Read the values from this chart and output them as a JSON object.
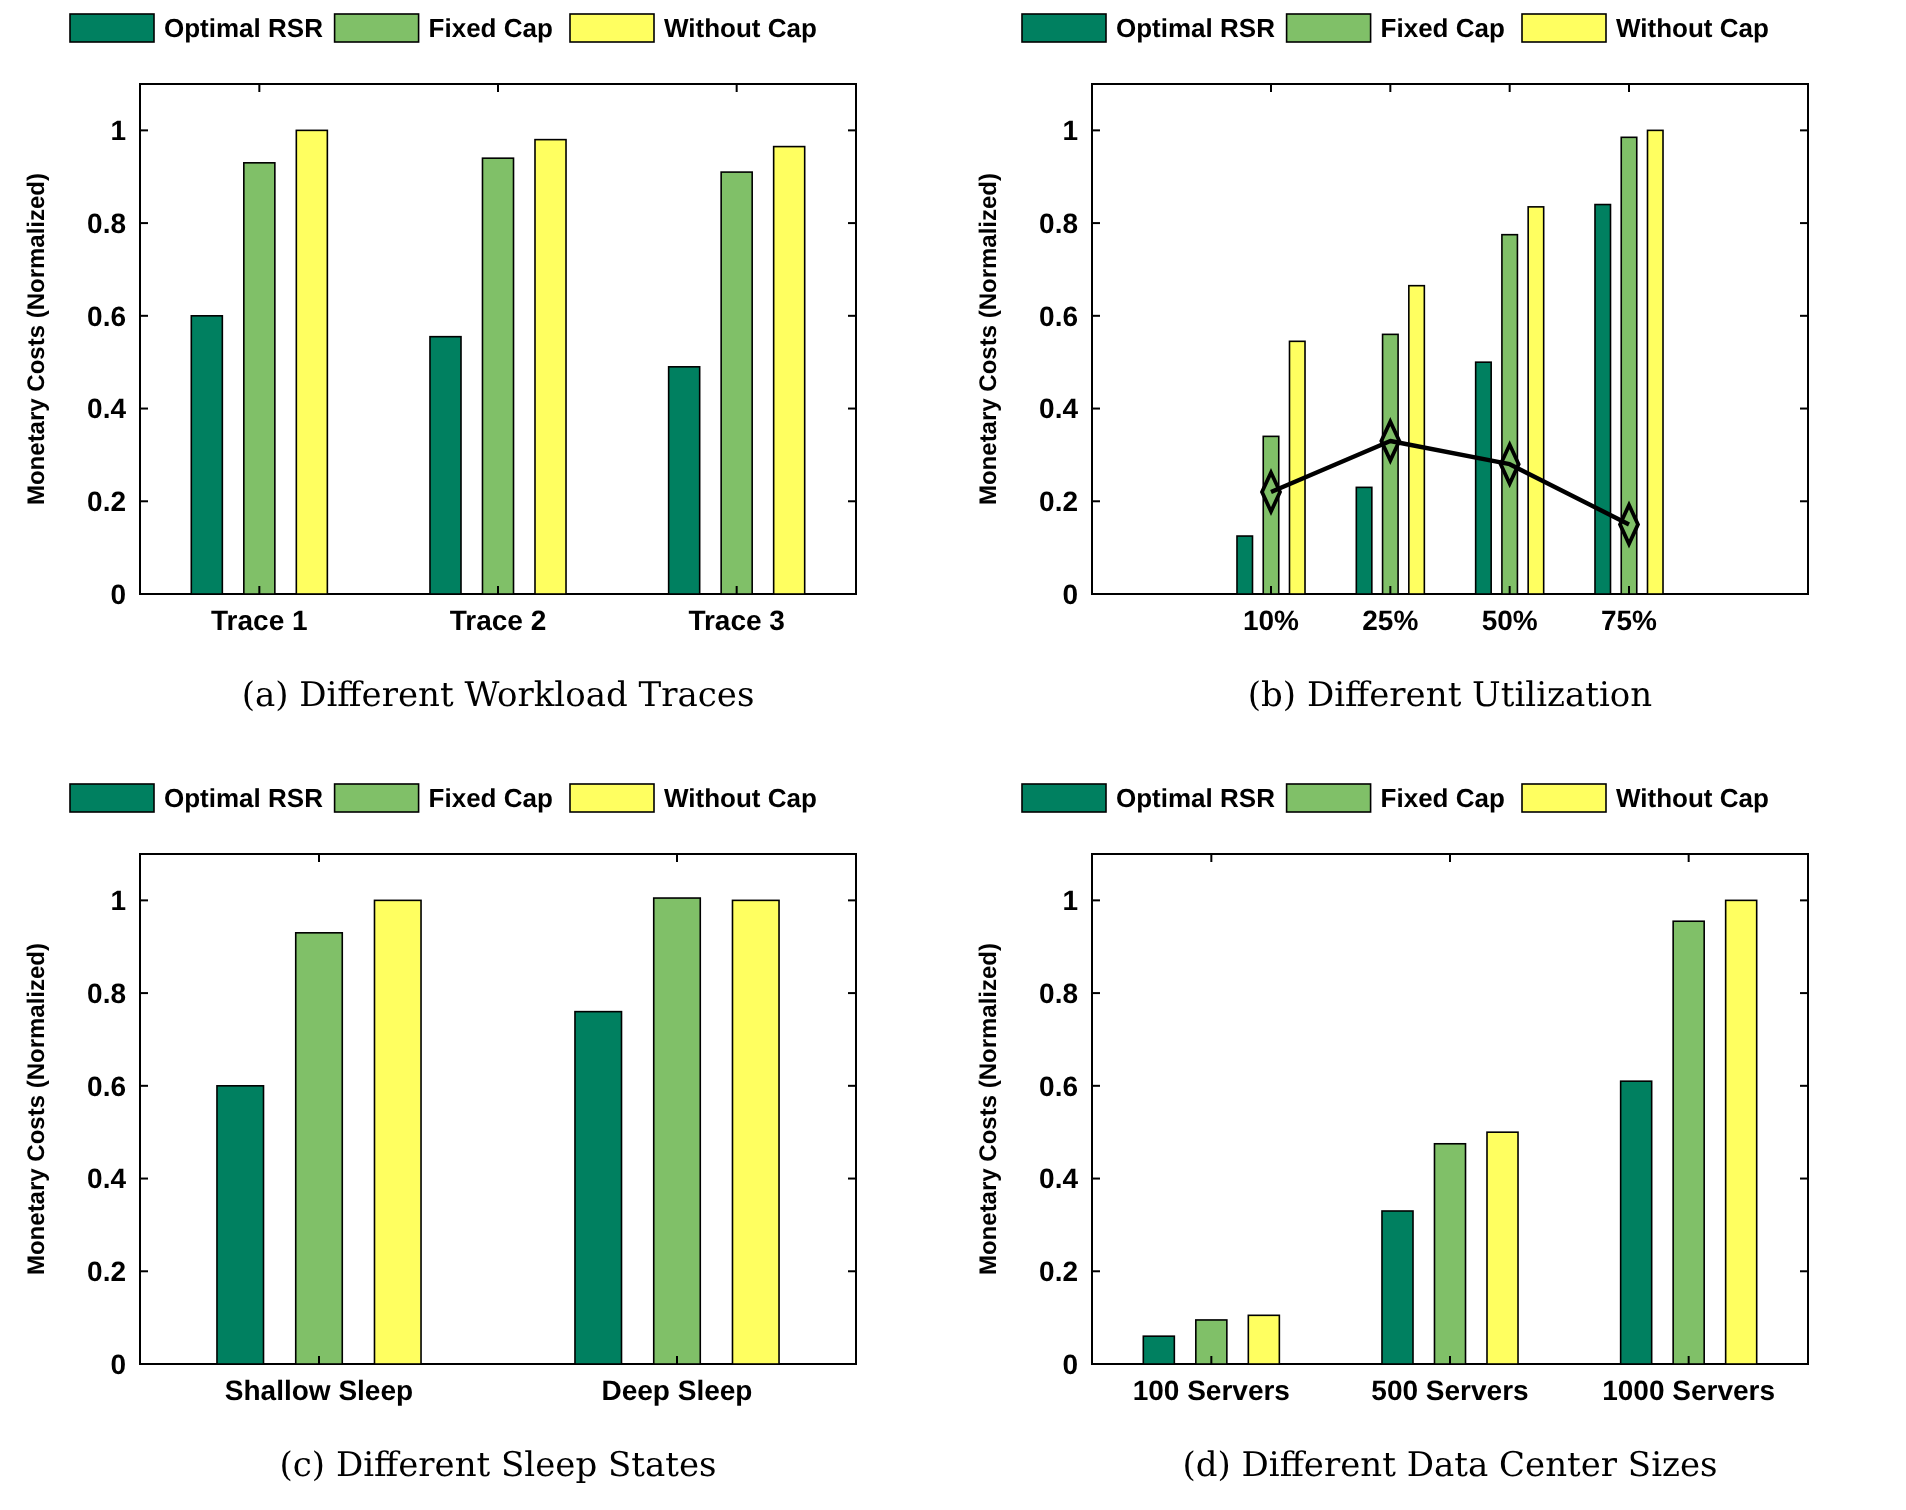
{
  "chart_data": [
    {
      "type": "bar",
      "title": "(a) Different Workload Traces",
      "ylabel": "Monetary Costs (Normalized)",
      "categories": [
        "Trace 1",
        "Trace 2",
        "Trace 3"
      ],
      "series": [
        {
          "name": "Optimal RSR",
          "color": "#008060",
          "values": [
            0.6,
            0.555,
            0.49
          ]
        },
        {
          "name": "Fixed Cap",
          "color": "#80c068",
          "values": [
            0.93,
            0.94,
            0.91
          ]
        },
        {
          "name": "Without Cap",
          "color": "#ffff60",
          "values": [
            1,
            0.98,
            0.965
          ]
        }
      ],
      "ylim": [
        0,
        1.1
      ],
      "yticks": [
        0,
        0.2,
        0.4,
        0.6,
        0.8,
        1
      ],
      "legend": "top",
      "grid": false
    },
    {
      "type": "bar",
      "title": "(b) Different Utilization",
      "ylabel": "Monetary Costs (Normalized)",
      "categories": [
        null,
        "10%",
        "25%",
        "50%",
        "75%",
        null
      ],
      "series": [
        {
          "name": "Optimal RSR",
          "color": "#008060",
          "values": [
            null,
            0.125,
            0.23,
            0.5,
            0.84,
            null
          ]
        },
        {
          "name": "Fixed Cap",
          "color": "#80c068",
          "values": [
            null,
            0.34,
            0.56,
            0.775,
            0.985,
            null
          ]
        },
        {
          "name": "Without Cap",
          "color": "#ffff60",
          "values": [
            null,
            0.545,
            0.665,
            0.835,
            1,
            null
          ]
        },
        {
          "type": "line",
          "color": "#000000",
          "marker": "diamond",
          "values": [
            null,
            0.22,
            0.33,
            0.28,
            0.15,
            null
          ]
        }
      ],
      "ylim": [
        0,
        1.1
      ],
      "yticks": [
        0,
        0.2,
        0.4,
        0.6,
        0.8,
        1
      ],
      "legend": "top",
      "grid": false
    },
    {
      "type": "bar",
      "title": "(c) Different Sleep States",
      "ylabel": "Monetary Costs (Normalized)",
      "categories": [
        "Shallow Sleep",
        "Deep Sleep"
      ],
      "series": [
        {
          "name": "Optimal RSR",
          "color": "#008060",
          "values": [
            0.6,
            0.76
          ]
        },
        {
          "name": "Fixed Cap",
          "color": "#80c068",
          "values": [
            0.93,
            1.005
          ]
        },
        {
          "name": "Without Cap",
          "color": "#ffff60",
          "values": [
            1,
            1
          ]
        }
      ],
      "ylim": [
        0,
        1.1
      ],
      "yticks": [
        0,
        0.2,
        0.4,
        0.6,
        0.8,
        1
      ],
      "legend": "top",
      "grid": false
    },
    {
      "type": "bar",
      "title": "(d) Different Data Center Sizes",
      "ylabel": "Monetary Costs (Normalized)",
      "categories": [
        "100 Servers",
        "500 Servers",
        "1000 Servers"
      ],
      "series": [
        {
          "name": "Optimal RSR",
          "color": "#008060",
          "values": [
            0.06,
            0.33,
            0.61
          ]
        },
        {
          "name": "Fixed Cap",
          "color": "#80c068",
          "values": [
            0.095,
            0.475,
            0.955
          ]
        },
        {
          "name": "Without Cap",
          "color": "#ffff60",
          "values": [
            0.105,
            0.5,
            1
          ]
        }
      ],
      "ylim": [
        0,
        1.1
      ],
      "yticks": [
        0,
        0.2,
        0.4,
        0.6,
        0.8,
        1
      ],
      "legend": "top",
      "grid": false
    }
  ]
}
